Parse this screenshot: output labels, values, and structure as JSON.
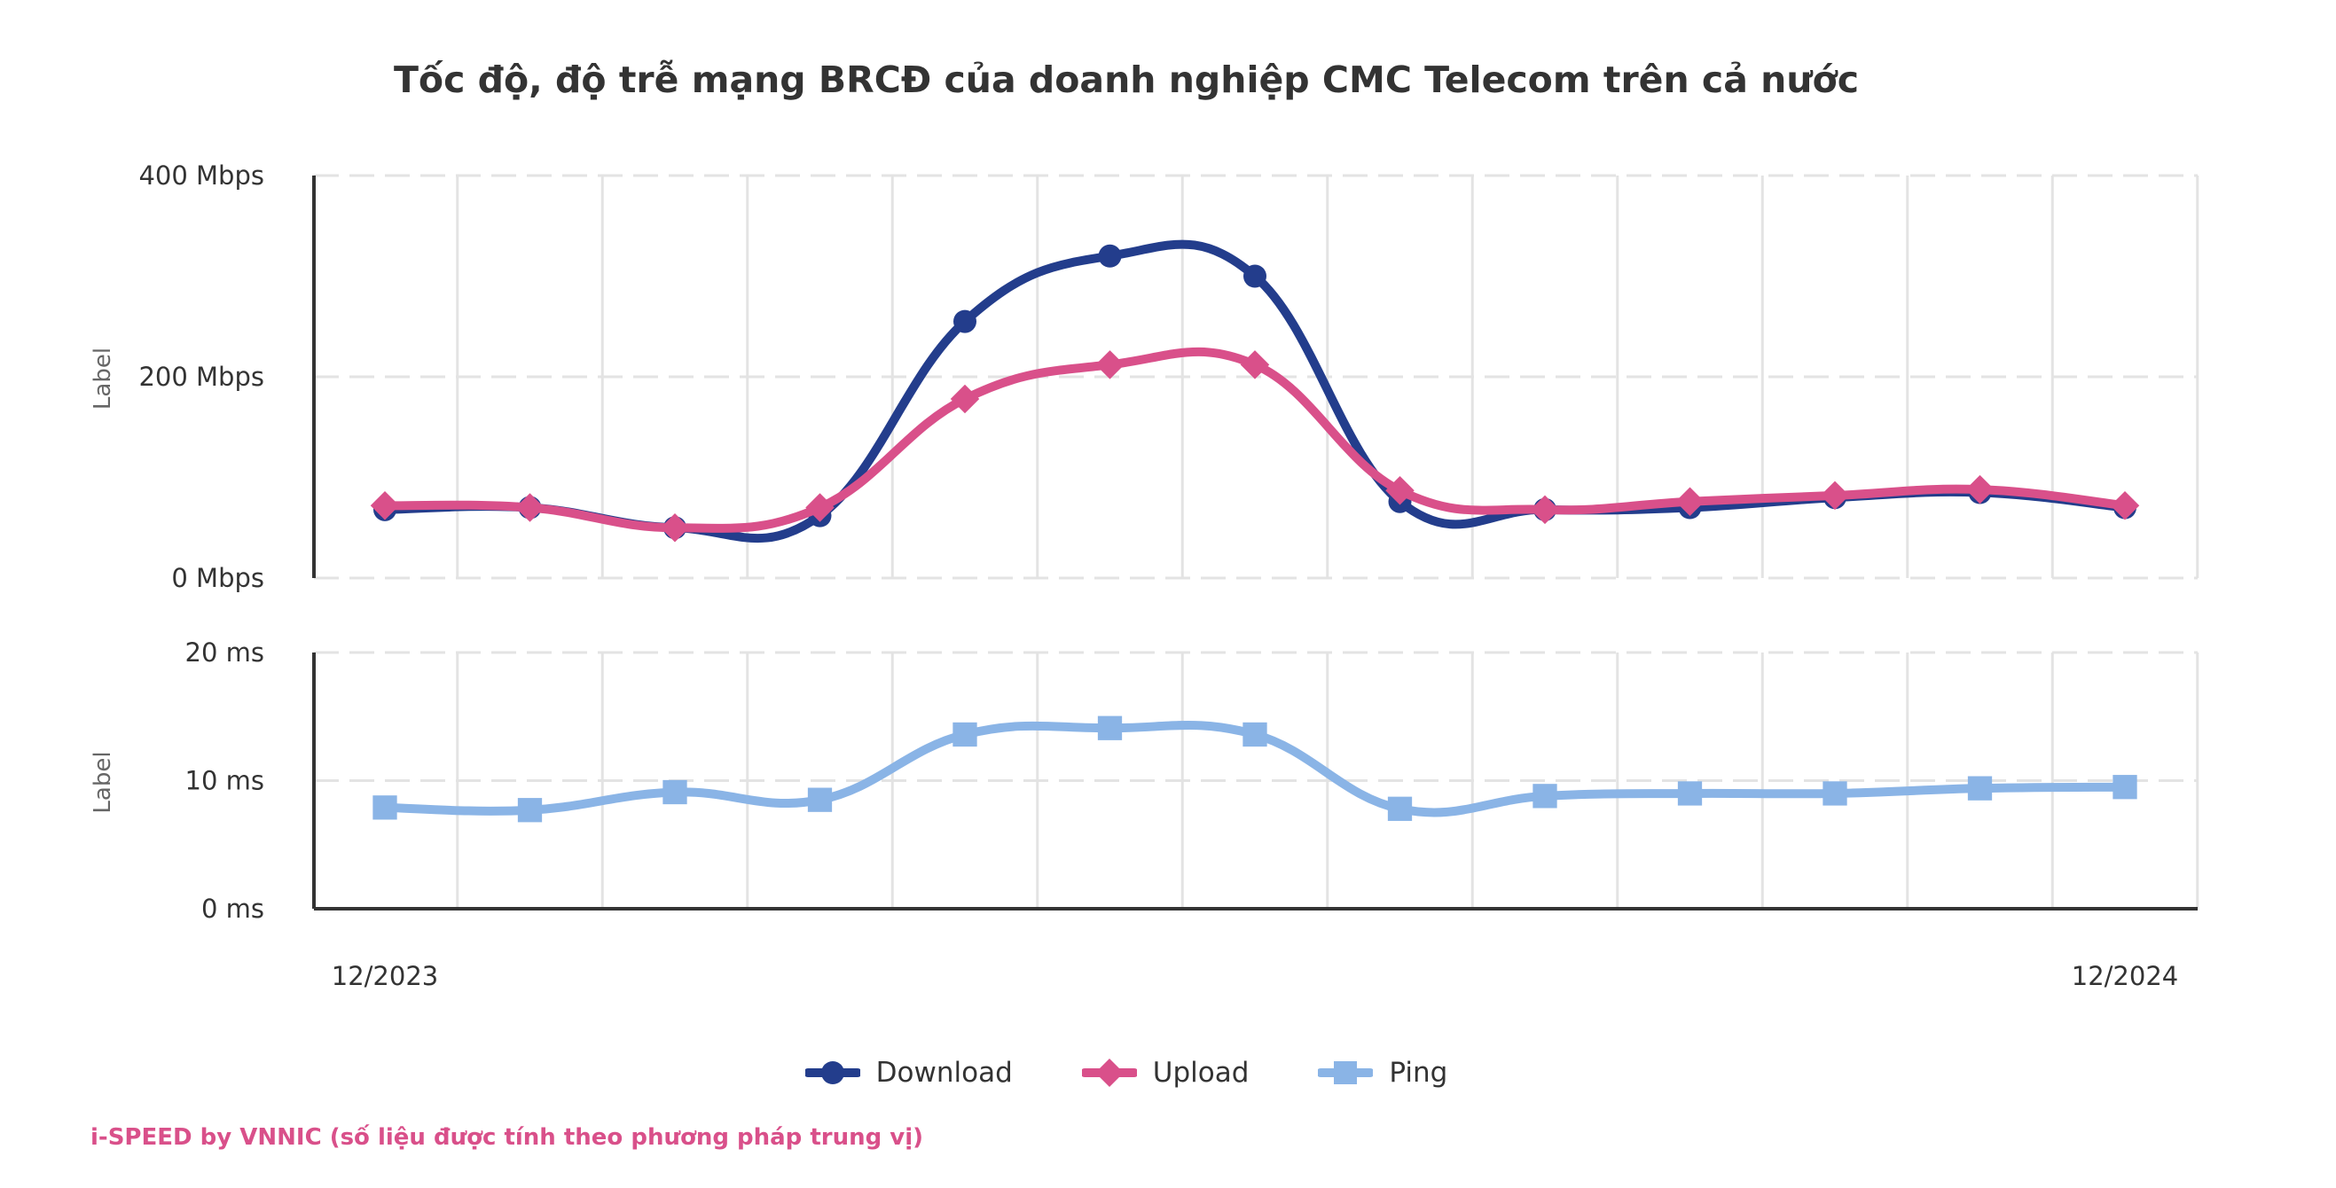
{
  "chart_data": {
    "type": "line",
    "title": "Tốc độ, độ trễ mạng BRCĐ của doanh nghiệp CMC Telecom trên cả nước",
    "x_tick_labels": [
      "12/2023",
      "12/2024"
    ],
    "x_count": 13,
    "panels": [
      {
        "name": "speed",
        "ylabel": "Label",
        "ylim": [
          0,
          400
        ],
        "y_ticks": [
          {
            "value": 0,
            "label": "0 Mbps"
          },
          {
            "value": 200,
            "label": "200 Mbps"
          },
          {
            "value": 400,
            "label": "400 Mbps"
          }
        ],
        "series": [
          {
            "name": "Download",
            "color": "#233d8c",
            "marker": "circle",
            "values": [
              68,
              70,
              50,
              62,
              255,
              320,
              300,
              76,
              68,
              70,
              80,
              85,
              70
            ]
          },
          {
            "name": "Upload",
            "color": "#d9508a",
            "marker": "diamond",
            "values": [
              72,
              70,
              50,
              70,
              178,
              212,
              212,
              87,
              68,
              76,
              82,
              88,
              72
            ]
          }
        ]
      },
      {
        "name": "latency",
        "ylabel": "Label",
        "ylim": [
          0,
          20
        ],
        "y_ticks": [
          {
            "value": 0,
            "label": "0 ms"
          },
          {
            "value": 10,
            "label": "10 ms"
          },
          {
            "value": 20,
            "label": "20 ms"
          }
        ],
        "series": [
          {
            "name": "Ping",
            "color": "#8ab4e6",
            "marker": "square",
            "values": [
              7.9,
              7.7,
              9.1,
              8.5,
              13.6,
              14.1,
              13.6,
              7.8,
              8.8,
              9.0,
              9.0,
              9.4,
              9.5
            ]
          }
        ]
      }
    ],
    "legend": {
      "placement": "bottom-center",
      "items": [
        {
          "label": "Download",
          "color": "#233d8c",
          "marker": "circle"
        },
        {
          "label": "Upload",
          "color": "#d9508a",
          "marker": "diamond"
        },
        {
          "label": "Ping",
          "color": "#8ab4e6",
          "marker": "square"
        }
      ]
    },
    "grid": true
  },
  "footer": {
    "text": "i-SPEED by VNNIC (số liệu được tính theo phương pháp trung vị)",
    "color": "#d9508a"
  }
}
